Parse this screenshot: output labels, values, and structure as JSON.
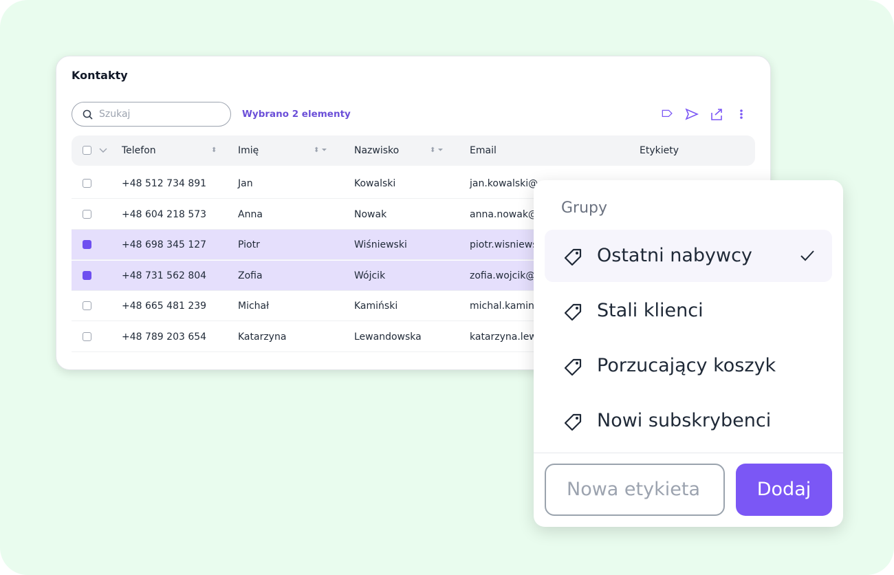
{
  "card": {
    "title": "Kontakty",
    "search_placeholder": "Szukaj",
    "selection_text": "Wybrano 2 elementy"
  },
  "table": {
    "headers": [
      "Telefon",
      "Imię",
      "Nazwisko",
      "Email",
      "Etykiety"
    ],
    "rows": [
      {
        "cells": [
          "+48 512 734 891",
          "Jan",
          "Kowalski",
          "jan.kowalski@"
        ],
        "selected": false
      },
      {
        "cells": [
          "+48 604 218 573",
          "Anna",
          "Nowak",
          "anna.nowak@"
        ],
        "selected": false
      },
      {
        "cells": [
          "+48 698 345 127",
          "Piotr",
          "Wiśniewski",
          "piotr.wisniews"
        ],
        "selected": true
      },
      {
        "cells": [
          "+48 731 562 804",
          "Zofia",
          "Wójcik",
          "zofia.wojcik@"
        ],
        "selected": true
      },
      {
        "cells": [
          "+48 665 481 239",
          "Michał",
          "Kamiński",
          "michal.kamins"
        ],
        "selected": false
      },
      {
        "cells": [
          "+48 789 203 654",
          "Katarzyna",
          "Lewandowska",
          "katarzyna.lew"
        ],
        "selected": false
      }
    ]
  },
  "popup": {
    "title": "Grupy",
    "items": [
      {
        "label": "Ostatni nabywcy",
        "checked": true
      },
      {
        "label": "Stali klienci",
        "checked": false
      },
      {
        "label": "Porzucający koszyk",
        "checked": false
      },
      {
        "label": "Nowi subskrybenci",
        "checked": false
      }
    ],
    "input_placeholder": "Nowa etykieta",
    "button": "Dodaj"
  }
}
